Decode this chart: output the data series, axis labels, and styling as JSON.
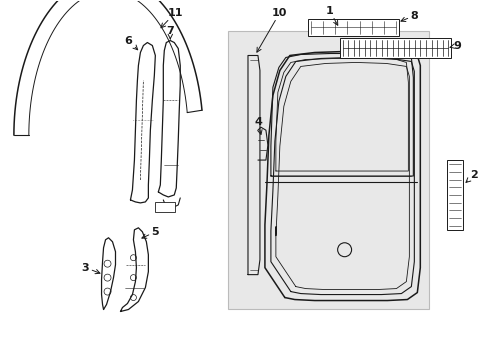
{
  "background_color": "#ffffff",
  "line_color": "#1a1a1a",
  "box_fill": "#e8e8e8",
  "fig_width": 4.89,
  "fig_height": 3.6,
  "dpi": 100
}
